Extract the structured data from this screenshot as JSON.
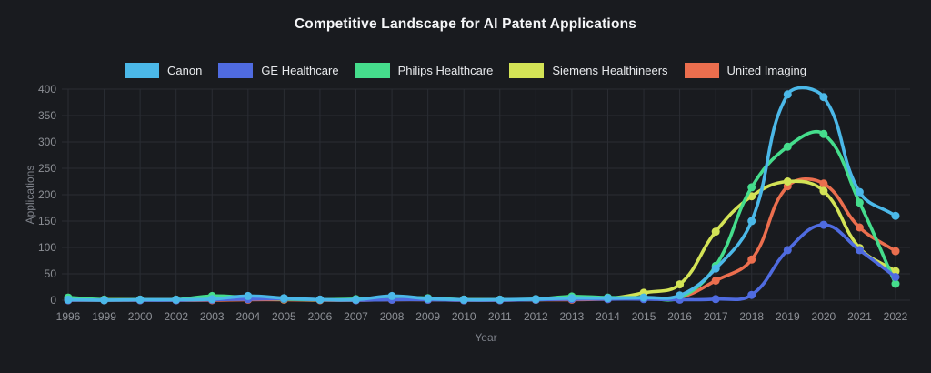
{
  "colors": {
    "background": "#191b1f",
    "grid": "#2a2d33",
    "tick_text": "#8d9096",
    "axis_title_text": "#7e828a",
    "title_text": "#f5f6f8",
    "legend_text": "#e7e9ec"
  },
  "chart_data": {
    "type": "line",
    "title": "Competitive Landscape for AI Patent Applications",
    "xlabel": "Year",
    "ylabel": "Applications",
    "ylim": [
      0,
      400
    ],
    "ytick_step": 50,
    "grid": true,
    "legend_position": "top",
    "line_tension": 0.4,
    "categories": [
      "1996",
      "1999",
      "2000",
      "2002",
      "2003",
      "2004",
      "2005",
      "2006",
      "2007",
      "2008",
      "2009",
      "2010",
      "2011",
      "2012",
      "2013",
      "2014",
      "2015",
      "2016",
      "2017",
      "2018",
      "2019",
      "2020",
      "2021",
      "2022"
    ],
    "series": [
      {
        "name": "Canon",
        "color": "#4bb8e8",
        "values": [
          1,
          0,
          1,
          1,
          2,
          8,
          4,
          1,
          1,
          8,
          3,
          1,
          1,
          2,
          4,
          4,
          5,
          9,
          60,
          150,
          390,
          385,
          205,
          160
        ]
      },
      {
        "name": "GE Healthcare",
        "color": "#4f6be0",
        "values": [
          0,
          0,
          0,
          0,
          1,
          2,
          3,
          1,
          0,
          1,
          1,
          0,
          0,
          1,
          2,
          2,
          2,
          1,
          2,
          10,
          95,
          143,
          95,
          44
        ]
      },
      {
        "name": "Philips Healthcare",
        "color": "#45dd8c",
        "values": [
          5,
          1,
          1,
          1,
          8,
          5,
          2,
          1,
          2,
          5,
          4,
          1,
          1,
          2,
          7,
          5,
          5,
          5,
          65,
          214,
          291,
          315,
          185,
          31
        ]
      },
      {
        "name": "Siemens Healthineers",
        "color": "#d3e356",
        "values": [
          2,
          1,
          1,
          1,
          2,
          6,
          3,
          1,
          1,
          6,
          2,
          1,
          1,
          1,
          3,
          3,
          14,
          30,
          130,
          197,
          225,
          207,
          99,
          55
        ]
      },
      {
        "name": "United Imaging",
        "color": "#eb6e4e",
        "values": [
          0,
          0,
          0,
          0,
          0,
          1,
          1,
          0,
          0,
          1,
          1,
          0,
          0,
          1,
          1,
          2,
          3,
          5,
          37,
          77,
          216,
          221,
          138,
          93
        ]
      }
    ]
  }
}
